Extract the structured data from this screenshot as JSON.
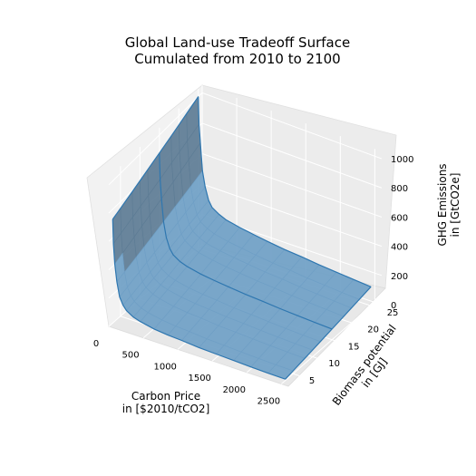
{
  "chart_data": {
    "type": "surface3d",
    "title_lines": [
      "Global Land-use Tradeoff Surface",
      "Cumulated from 2010 to 2100"
    ],
    "xlabel_lines": [
      "Carbon Price",
      "in [$2010/tCO2]"
    ],
    "ylabel_lines": [
      "Biomass potential",
      "in [GJ]"
    ],
    "zlabel_lines": [
      "GHG Emissions",
      "in [GtCO2e]"
    ],
    "x_ticks": [
      "0",
      "500",
      "1000",
      "1500",
      "2000",
      "2500"
    ],
    "y_ticks": [
      "5",
      "10",
      "15",
      "20",
      "25"
    ],
    "z_ticks": [
      "0",
      "200",
      "400",
      "600",
      "800",
      "1000"
    ],
    "xlim": [
      0,
      2600
    ],
    "ylim": [
      2,
      26
    ],
    "zlim": [
      0,
      1050
    ],
    "grid": true,
    "surface_color": "#1f77b4",
    "carbon_price": [
      0,
      10,
      30,
      60,
      100,
      150,
      200,
      300,
      400,
      600,
      800,
      1000,
      1250,
      1500,
      1750,
      2000,
      2250,
      2500
    ],
    "biomass_potential": [
      3,
      5,
      8,
      10,
      12,
      15,
      18,
      20,
      22,
      25
    ],
    "emissions_at_min_biomass": [
      730,
      560,
      420,
      300,
      200,
      150,
      120,
      90,
      75,
      55,
      45,
      40,
      30,
      25,
      20,
      15,
      12,
      10
    ],
    "emissions_at_max_biomass": [
      1000,
      820,
      700,
      520,
      420,
      340,
      300,
      270,
      250,
      230,
      215,
      200,
      185,
      175,
      160,
      150,
      140,
      130
    ]
  }
}
